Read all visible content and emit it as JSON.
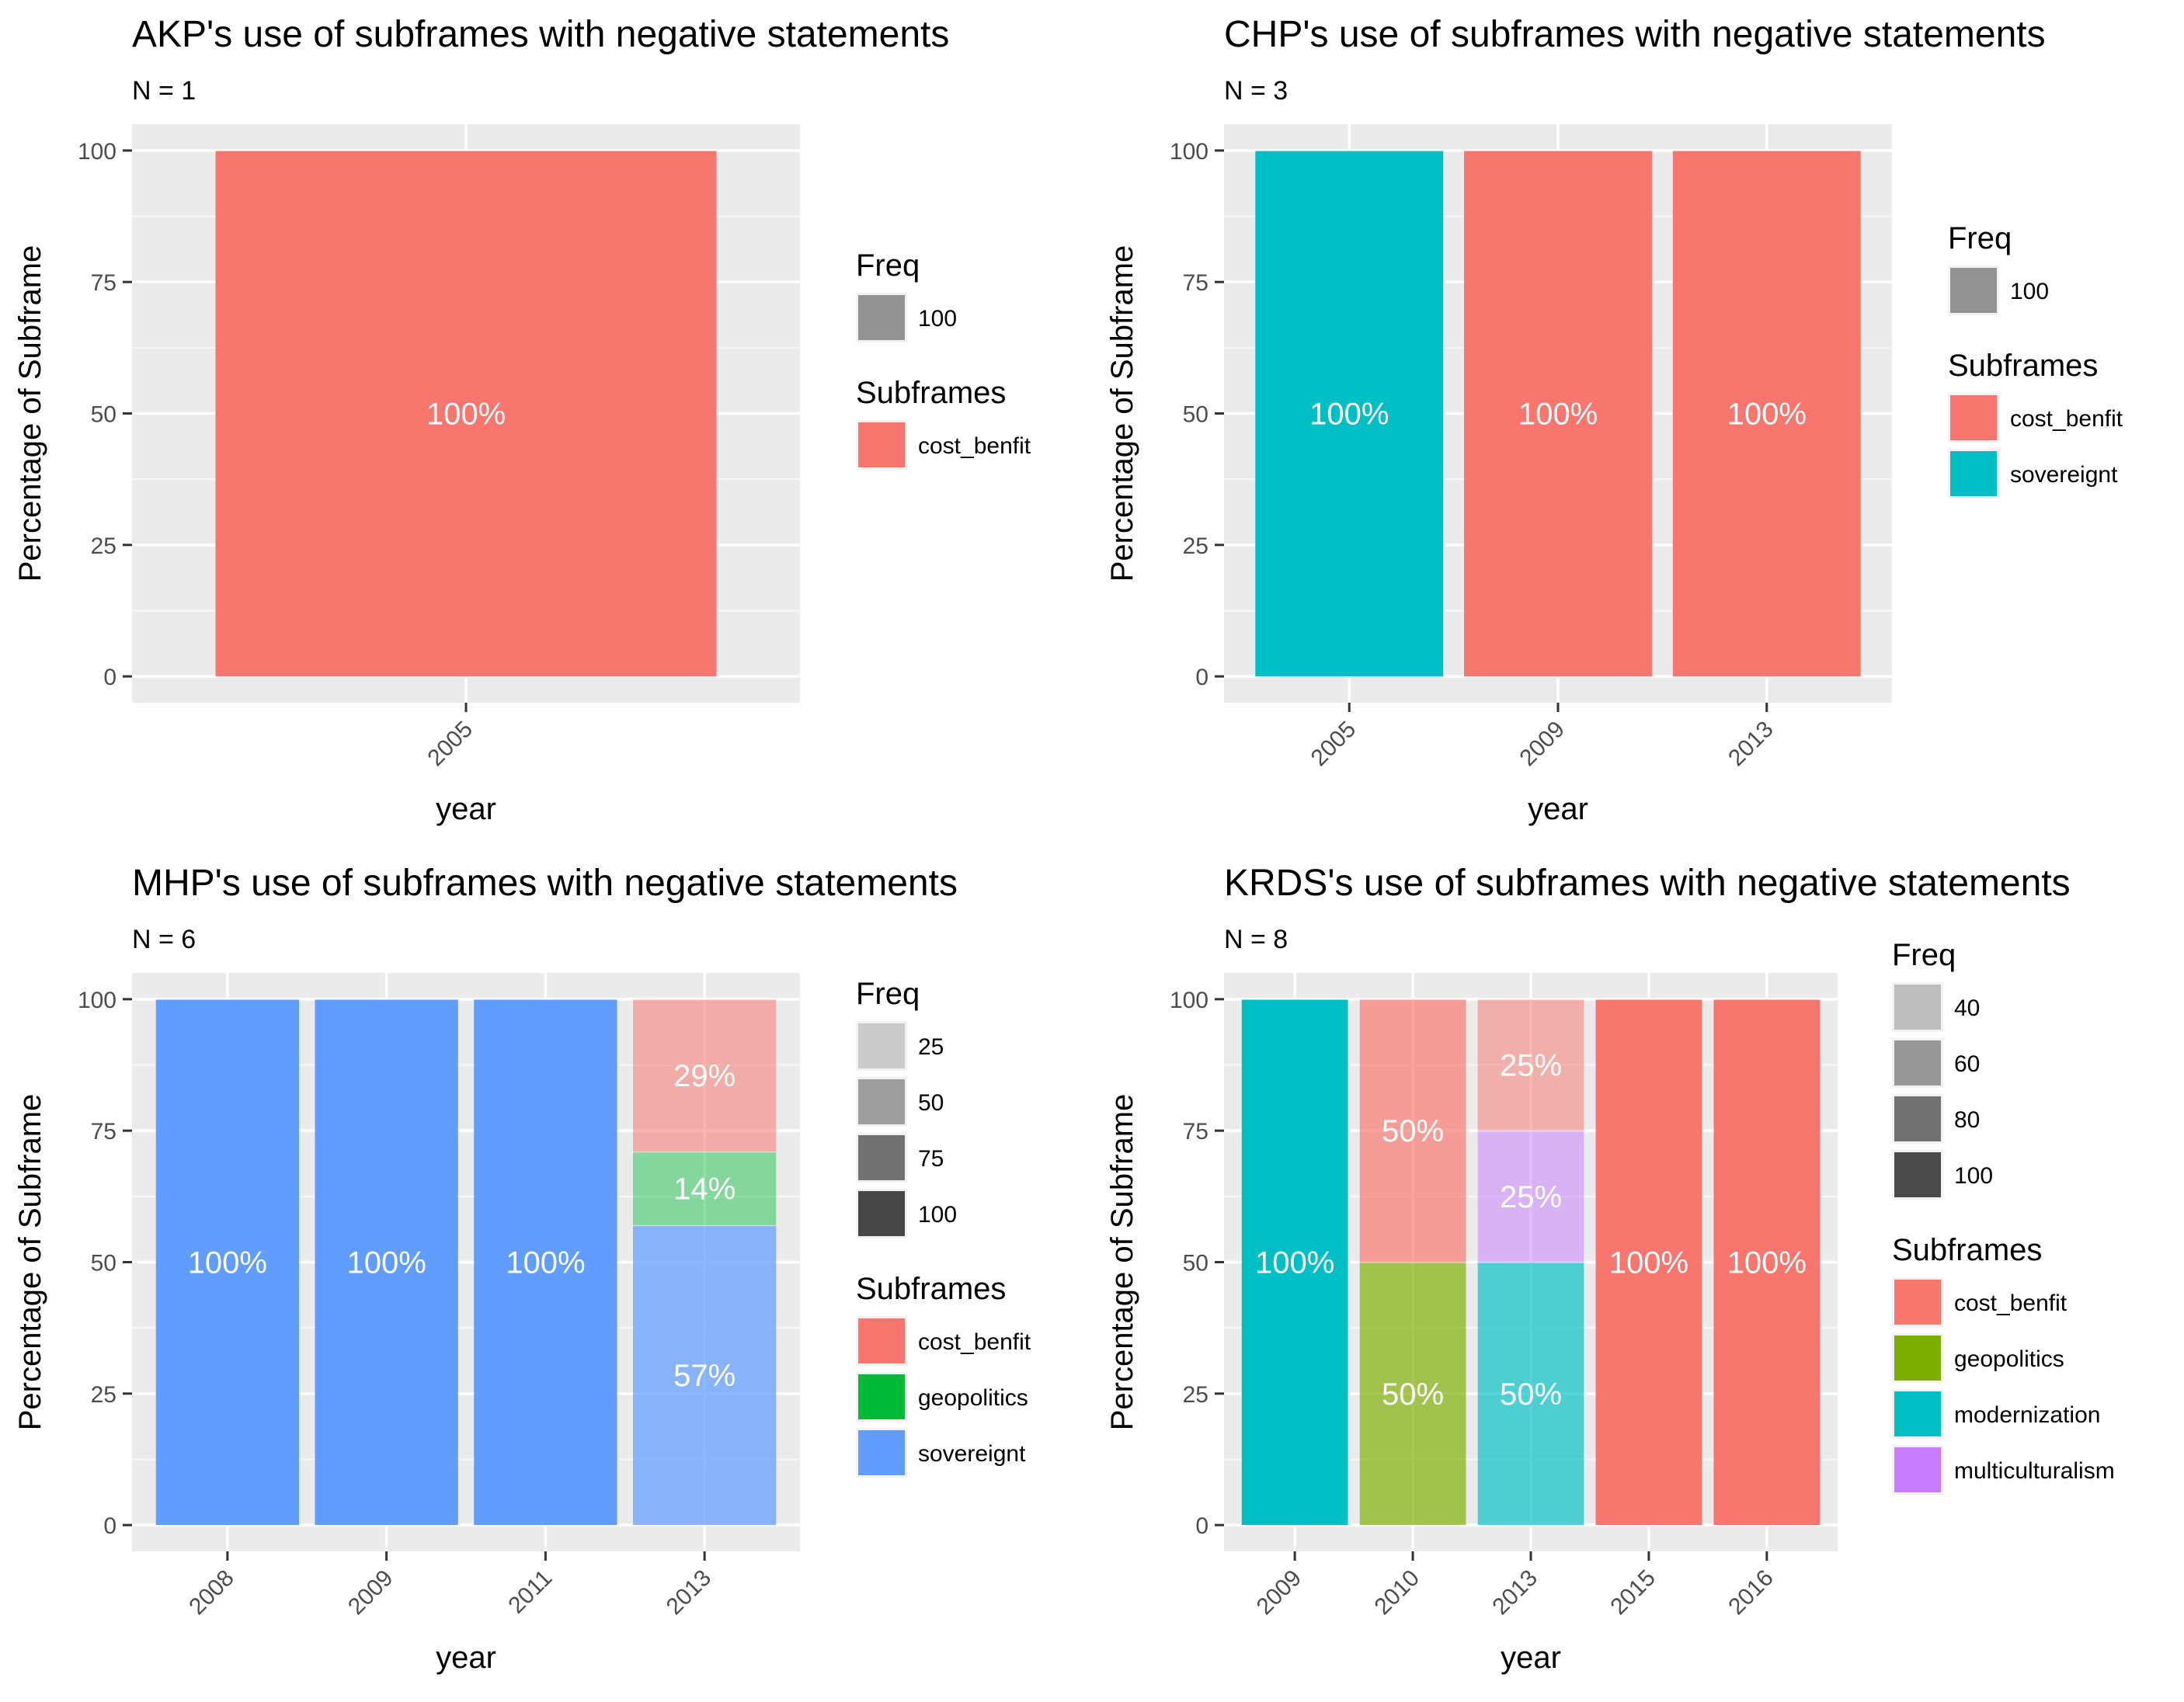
{
  "chart_data": [
    {
      "type": "bar",
      "stacked": true,
      "title": "AKP's use of subframes with negative statements",
      "subtitle": "N = 1",
      "xlabel": "year",
      "ylabel": "Percentage of Subframe",
      "ylim": [
        0,
        100
      ],
      "yticks": [
        0,
        25,
        50,
        75,
        100
      ],
      "categories": [
        "2005"
      ],
      "series": [
        {
          "name": "cost_benfit",
          "color": "#F8766D",
          "values": [
            100
          ],
          "freq": [
            100
          ]
        }
      ],
      "data_labels": [
        [
          "100%"
        ]
      ],
      "legends": {
        "freq": {
          "title": "Freq",
          "entries": [
            {
              "label": "100",
              "color": "#939393"
            }
          ]
        },
        "subframes": {
          "title": "Subframes",
          "entries": [
            {
              "label": "cost_benfit",
              "color": "#F8766D"
            }
          ]
        }
      }
    },
    {
      "type": "bar",
      "stacked": true,
      "title": "CHP's use of subframes with negative statements",
      "subtitle": "N = 3",
      "xlabel": "year",
      "ylabel": "Percentage of Subframe",
      "ylim": [
        0,
        100
      ],
      "yticks": [
        0,
        25,
        50,
        75,
        100
      ],
      "categories": [
        "2005",
        "2009",
        "2013"
      ],
      "series": [
        {
          "name": "sovereignt",
          "color": "#00BFC4",
          "values": [
            100,
            0,
            0
          ],
          "freq": [
            100,
            0,
            0
          ]
        },
        {
          "name": "cost_benfit",
          "color": "#F8766D",
          "values": [
            0,
            100,
            100
          ],
          "freq": [
            0,
            100,
            100
          ]
        }
      ],
      "data_labels": [
        [
          "100%",
          "",
          ""
        ],
        [
          "",
          "100%",
          "100%"
        ]
      ],
      "legends": {
        "freq": {
          "title": "Freq",
          "entries": [
            {
              "label": "100",
              "color": "#939393"
            }
          ]
        },
        "subframes": {
          "title": "Subframes",
          "entries": [
            {
              "label": "cost_benfit",
              "color": "#F8766D"
            },
            {
              "label": "sovereignt",
              "color": "#00BFC4"
            }
          ]
        }
      }
    },
    {
      "type": "bar",
      "stacked": true,
      "title": "MHP's use of subframes with negative statements",
      "subtitle": "N = 6",
      "xlabel": "year",
      "ylabel": "Percentage of Subframe",
      "ylim": [
        0,
        100
      ],
      "yticks": [
        0,
        25,
        50,
        75,
        100
      ],
      "categories": [
        "2008",
        "2009",
        "2011",
        "2013"
      ],
      "series": [
        {
          "name": "sovereignt",
          "color": "#619CFF",
          "values": [
            100,
            100,
            100,
            57
          ],
          "freq": [
            100,
            100,
            100,
            57
          ]
        },
        {
          "name": "geopolitics",
          "color": "#00BA38",
          "values": [
            0,
            0,
            0,
            14
          ],
          "freq": [
            0,
            0,
            0,
            14
          ]
        },
        {
          "name": "cost_benfit",
          "color": "#F8766D",
          "values": [
            0,
            0,
            0,
            29
          ],
          "freq": [
            0,
            0,
            0,
            29
          ]
        }
      ],
      "data_labels": [
        [
          "100%",
          "100%",
          "100%",
          "57%"
        ],
        [
          "",
          "",
          "",
          "14%"
        ],
        [
          "",
          "",
          "",
          "29%"
        ]
      ],
      "legends": {
        "freq": {
          "title": "Freq",
          "entries": [
            {
              "label": "25",
              "color": "#cbcbcb"
            },
            {
              "label": "50",
              "color": "#9e9e9e"
            },
            {
              "label": "75",
              "color": "#717171"
            },
            {
              "label": "100",
              "color": "#474747"
            }
          ]
        },
        "subframes": {
          "title": "Subframes",
          "entries": [
            {
              "label": "cost_benfit",
              "color": "#F8766D"
            },
            {
              "label": "geopolitics",
              "color": "#00BA38"
            },
            {
              "label": "sovereignt",
              "color": "#619CFF"
            }
          ]
        }
      }
    },
    {
      "type": "bar",
      "stacked": true,
      "title": "KRDS's use of subframes with negative statements",
      "subtitle": "N = 8",
      "xlabel": "year",
      "ylabel": "Percentage of Subframe",
      "ylim": [
        0,
        100
      ],
      "yticks": [
        0,
        25,
        50,
        75,
        100
      ],
      "categories": [
        "2009",
        "2010",
        "2013",
        "2015",
        "2016"
      ],
      "series": [
        {
          "name": "modernization",
          "color": "#00BFC4",
          "values": [
            100,
            0,
            50,
            0,
            0
          ],
          "freq": [
            100,
            0,
            50,
            0,
            0
          ]
        },
        {
          "name": "multiculturalism",
          "color": "#C77CFF",
          "values": [
            0,
            0,
            25,
            0,
            0
          ],
          "freq": [
            0,
            0,
            25,
            0,
            0
          ]
        },
        {
          "name": "geopolitics",
          "color": "#7CAE00",
          "values": [
            0,
            50,
            0,
            0,
            0
          ],
          "freq": [
            0,
            50,
            0,
            0,
            0
          ]
        },
        {
          "name": "cost_benfit",
          "color": "#F8766D",
          "values": [
            0,
            50,
            25,
            100,
            100
          ],
          "freq": [
            0,
            50,
            25,
            100,
            100
          ]
        }
      ],
      "data_labels": [
        [
          "100%",
          "",
          "50%",
          "",
          ""
        ],
        [
          "",
          "",
          "25%",
          "",
          ""
        ],
        [
          "",
          "50%",
          "",
          "",
          ""
        ],
        [
          "",
          "50%",
          "25%",
          "100%",
          "100%"
        ]
      ],
      "legends": {
        "freq": {
          "title": "Freq",
          "entries": [
            {
              "label": "40",
              "color": "#bdbdbd"
            },
            {
              "label": "60",
              "color": "#979797"
            },
            {
              "label": "80",
              "color": "#717171"
            },
            {
              "label": "100",
              "color": "#4a4a4a"
            }
          ]
        },
        "subframes": {
          "title": "Subframes",
          "entries": [
            {
              "label": "cost_benfit",
              "color": "#F8766D"
            },
            {
              "label": "geopolitics",
              "color": "#7CAE00"
            },
            {
              "label": "modernization",
              "color": "#00BFC4"
            },
            {
              "label": "multiculturalism",
              "color": "#C77CFF"
            }
          ]
        }
      }
    }
  ]
}
